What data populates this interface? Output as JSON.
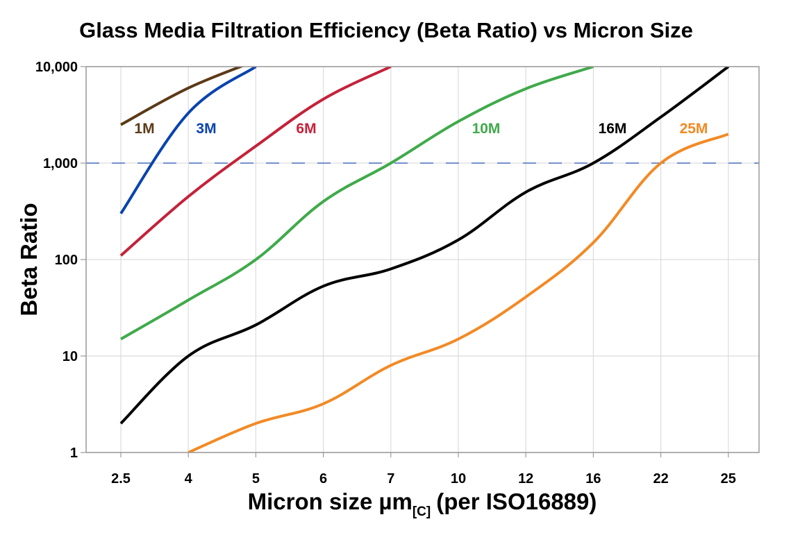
{
  "chart_data": {
    "type": "line",
    "title": "Glass Media Filtration Efficiency (Beta Ratio) vs Micron Size",
    "xlabel_main": "Micron size µm",
    "xlabel_sub": "[C]",
    "xlabel_tail": "(per ISO16889)",
    "ylabel": "Beta Ratio",
    "categories": [
      "2.5",
      "4",
      "5",
      "6",
      "7",
      "10",
      "12",
      "16",
      "22",
      "25"
    ],
    "y_scale": "log",
    "ylim": [
      1,
      10000
    ],
    "y_ticks": [
      {
        "value": 1,
        "label": "1"
      },
      {
        "value": 10,
        "label": "10"
      },
      {
        "value": 100,
        "label": "100"
      },
      {
        "value": 1000,
        "label": "1,000"
      },
      {
        "value": 10000,
        "label": "10,000"
      }
    ],
    "reference_line": {
      "value": 1000,
      "style": "dashed",
      "color": "#4a6fc0"
    },
    "grid": true,
    "series": [
      {
        "name": "1M",
        "color": "#5c3a17",
        "values": [
          2500,
          6000,
          11500,
          null,
          null,
          null,
          null,
          null,
          null,
          null
        ]
      },
      {
        "name": "3M",
        "color": "#0a44ad",
        "values": [
          300,
          3300,
          10000,
          null,
          null,
          null,
          null,
          null,
          null,
          null
        ]
      },
      {
        "name": "6M",
        "color": "#c4223a",
        "values": [
          110,
          450,
          1500,
          4600,
          10000,
          null,
          null,
          null,
          null,
          null
        ]
      },
      {
        "name": "10M",
        "color": "#3faa4a",
        "values": [
          15,
          38,
          100,
          400,
          1000,
          2700,
          5900,
          10000,
          null,
          null
        ]
      },
      {
        "name": "16M",
        "color": "#000000",
        "values": [
          2,
          10,
          21,
          53,
          80,
          160,
          500,
          1000,
          3000,
          10000
        ]
      },
      {
        "name": "25M",
        "color": "#f28a25",
        "values": [
          null,
          1,
          2,
          3.2,
          8,
          15,
          41,
          150,
          1000,
          2000
        ]
      }
    ]
  }
}
